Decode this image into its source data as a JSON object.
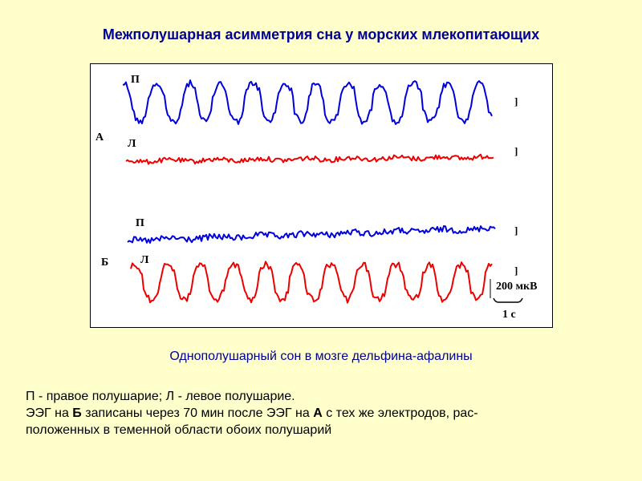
{
  "title": "Межполушарная асимметрия сна у морских млекопитающих",
  "figure": {
    "section_a": "А",
    "section_b": "Б",
    "traces": [
      {
        "label": "П",
        "color": "#0000DD",
        "amplitude": "high"
      },
      {
        "label": "Л",
        "color": "#EE0000",
        "amplitude": "low"
      },
      {
        "label": "П",
        "color": "#0000DD",
        "amplitude": "low"
      },
      {
        "label": "Л",
        "color": "#EE0000",
        "amplitude": "high"
      }
    ],
    "scale_amplitude": "200 мкВ",
    "scale_time": "1 с"
  },
  "caption": "Однополушарный  сон в мозге дельфина-афалины",
  "notes": {
    "line1": "П - правое полушарие; Л - левое полушарие.",
    "line2_pre": "ЭЭГ на ",
    "line2_b": "Б",
    "line2_mid": " записаны через 70 мин после ЭЭГ на ",
    "line2_a": "А",
    "line2_post": " с тех же электродов, рас-",
    "line3": "положенных в теменной области обоих полушарий"
  }
}
